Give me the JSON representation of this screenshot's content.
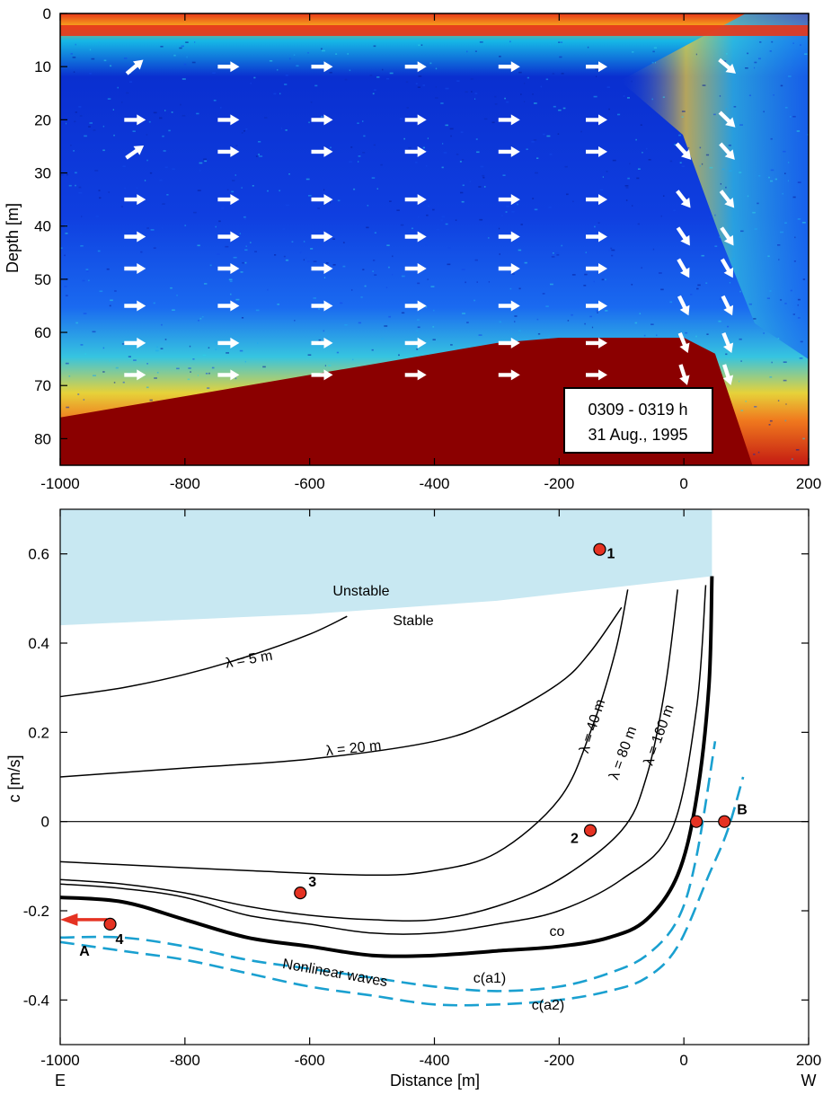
{
  "chart_data": [
    {
      "type": "heatmap",
      "ylabel": "Depth [m]",
      "xlim": [
        -1000,
        200
      ],
      "ylim": [
        85,
        0
      ],
      "x_ticks": [
        "-1000",
        "-800",
        "-600",
        "-400",
        "-200",
        "0",
        "200"
      ],
      "y_ticks": [
        "0",
        "10",
        "20",
        "30",
        "40",
        "50",
        "60",
        "70",
        "80"
      ],
      "annotation_lines": [
        "0309 - 0319 h",
        "31 Aug., 1995"
      ],
      "colors": {
        "bottom": "#8b0000",
        "water_deep": "#0a2fd0",
        "water_mid": "#1560f0",
        "surface": "#e8361a"
      },
      "bottom_profile": {
        "x": [
          -1000,
          -800,
          -600,
          -500,
          -400,
          -300,
          -200,
          0,
          50,
          110
        ],
        "depth": [
          76,
          72,
          68,
          66,
          64,
          62,
          61,
          61,
          64,
          85
        ]
      },
      "vectors": {
        "columns_x": [
          -880,
          -730,
          -580,
          -430,
          -280,
          -140,
          0,
          70
        ],
        "rows_depth": [
          10,
          20,
          26,
          35,
          42,
          48,
          55,
          62,
          68
        ]
      }
    },
    {
      "type": "line",
      "xlabel": "Distance [m]",
      "ylabel": "c [m/s]",
      "xlim": [
        -1000,
        200
      ],
      "ylim": [
        -0.5,
        0.7
      ],
      "x_ticks": [
        "-1000",
        "-800",
        "-600",
        "-400",
        "-200",
        "0",
        "200"
      ],
      "y_ticks": [
        "0.6",
        "0.4",
        "0.2",
        "0",
        "-0.2",
        "-0.4"
      ],
      "x_end_labels": {
        "left": "E",
        "right": "W"
      },
      "regions": {
        "unstable": "Unstable",
        "stable": "Stable",
        "color": "#c8e8f2"
      },
      "series": [
        {
          "name": "λ = 5 m",
          "x": [
            -1000,
            -900,
            -800,
            -700,
            -600,
            -540
          ],
          "y": [
            0.28,
            0.3,
            0.33,
            0.37,
            0.42,
            0.46
          ]
        },
        {
          "name": "λ = 20 m",
          "x": [
            -1000,
            -800,
            -600,
            -400,
            -300,
            -200,
            -150,
            -100
          ],
          "y": [
            0.1,
            0.12,
            0.14,
            0.18,
            0.23,
            0.31,
            0.38,
            0.48
          ]
        },
        {
          "name": "λ = 40 m",
          "x": [
            -1000,
            -700,
            -500,
            -400,
            -300,
            -200,
            -150,
            -110,
            -90
          ],
          "y": [
            -0.09,
            -0.11,
            -0.12,
            -0.11,
            -0.07,
            0.05,
            0.2,
            0.38,
            0.52
          ]
        },
        {
          "name": "λ = 80 m",
          "x": [
            -1000,
            -900,
            -800,
            -700,
            -600,
            -500,
            -400,
            -300,
            -200,
            -100,
            -60,
            -30,
            -10
          ],
          "y": [
            -0.13,
            -0.14,
            -0.16,
            -0.19,
            -0.21,
            -0.22,
            -0.22,
            -0.19,
            -0.13,
            -0.02,
            0.1,
            0.3,
            0.52
          ]
        },
        {
          "name": "λ = 160 m",
          "x": [
            -1000,
            -900,
            -800,
            -700,
            -600,
            -500,
            -400,
            -300,
            -200,
            -100,
            -20,
            20,
            35
          ],
          "y": [
            -0.14,
            -0.15,
            -0.17,
            -0.21,
            -0.23,
            -0.25,
            -0.25,
            -0.23,
            -0.2,
            -0.13,
            -0.02,
            0.25,
            0.53
          ]
        },
        {
          "name": "co",
          "x": [
            -1000,
            -900,
            -800,
            -700,
            -600,
            -500,
            -400,
            -300,
            -200,
            -120,
            -60,
            -10,
            20,
            40,
            45
          ],
          "y": [
            -0.17,
            -0.18,
            -0.22,
            -0.26,
            -0.28,
            -0.3,
            -0.3,
            -0.29,
            -0.28,
            -0.26,
            -0.22,
            -0.12,
            0.05,
            0.3,
            0.55
          ]
        },
        {
          "name": "c(a1)",
          "x": [
            -1000,
            -900,
            -800,
            -700,
            -600,
            -500,
            -400,
            -300,
            -200,
            -120,
            -60,
            -10,
            20,
            50
          ],
          "y": [
            -0.26,
            -0.26,
            -0.28,
            -0.31,
            -0.33,
            -0.35,
            -0.37,
            -0.38,
            -0.37,
            -0.34,
            -0.3,
            -0.22,
            -0.08,
            0.18
          ]
        },
        {
          "name": "c(a2)",
          "x": [
            -1000,
            -900,
            -800,
            -700,
            -600,
            -500,
            -400,
            -300,
            -200,
            -120,
            -60,
            -10,
            40,
            70,
            95
          ],
          "y": [
            -0.27,
            -0.29,
            -0.31,
            -0.34,
            -0.37,
            -0.39,
            -0.41,
            -0.41,
            -0.4,
            -0.38,
            -0.35,
            -0.28,
            -0.12,
            -0.02,
            0.1
          ]
        }
      ],
      "curve_labels": [
        "λ = 5 m",
        "λ = 20 m",
        "λ = 40 m",
        "λ = 80 m",
        "λ = 160 m",
        "co",
        "c(a1)",
        "c(a2)",
        "Nonlinear waves"
      ],
      "points": [
        {
          "label": "1",
          "x": -135,
          "y": 0.61
        },
        {
          "label": "2",
          "x": -150,
          "y": -0.02
        },
        {
          "label": "3",
          "x": -615,
          "y": -0.16
        },
        {
          "label": "4",
          "x": -920,
          "y": -0.23
        },
        {
          "label": "",
          "x": 20,
          "y": 0.0
        },
        {
          "label": "B",
          "x": 65,
          "y": 0.0
        }
      ],
      "arrow_label": "A",
      "colors": {
        "points": "#e53222",
        "dashed": "#1aa0d0",
        "arrow": "#e53222"
      }
    }
  ]
}
